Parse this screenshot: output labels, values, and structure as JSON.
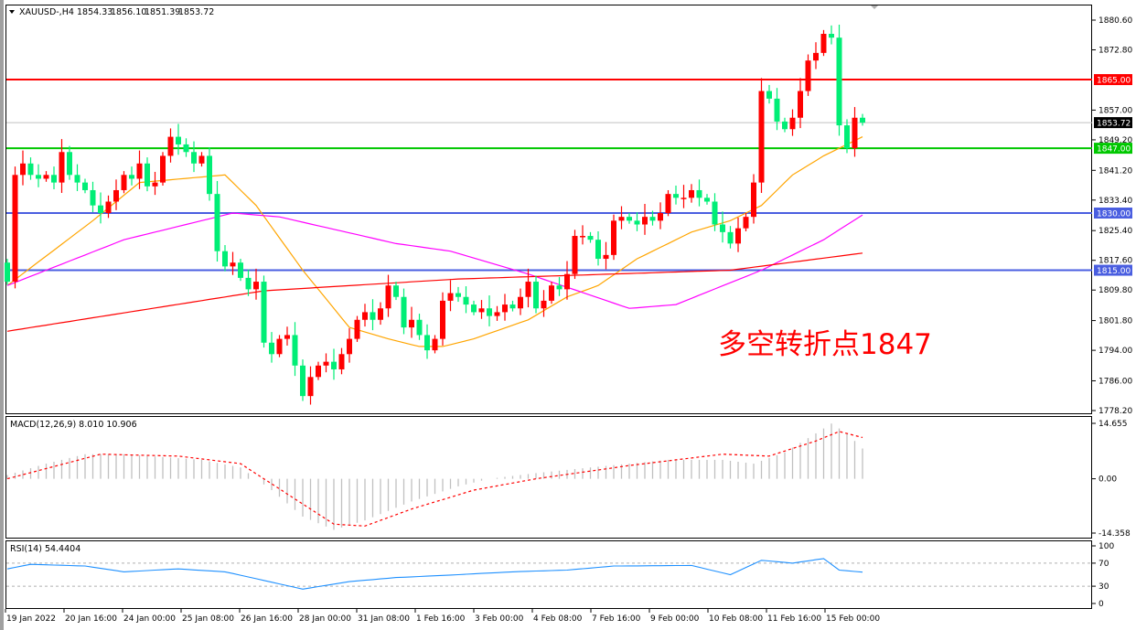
{
  "chart_data": {
    "type": "candlestick",
    "symbol_header": "XAUUSD-,H4",
    "ohlc_header": [
      "1854.33",
      "1856.10",
      "1851.39",
      "1853.72"
    ],
    "up_color": "#ff0000",
    "down_color": "#00ee76",
    "closes": [
      1812,
      1840,
      1843,
      1840,
      1839,
      1840,
      1838,
      1846,
      1840,
      1838,
      1836,
      1832,
      1830,
      1833,
      1836,
      1840,
      1839,
      1843,
      1837,
      1838,
      1845,
      1850,
      1848,
      1846,
      1843,
      1845,
      1835,
      1820,
      1816,
      1817,
      1813,
      1810,
      1812,
      1796,
      1793,
      1797,
      1798,
      1790,
      1782,
      1787,
      1790,
      1791,
      1789,
      1793,
      1797,
      1802,
      1804,
      1802,
      1805,
      1811,
      1808,
      1800,
      1802,
      1798,
      1794,
      1797,
      1807,
      1809,
      1808,
      1806,
      1804,
      1805,
      1803,
      1804,
      1806,
      1805,
      1808,
      1812,
      1805,
      1807,
      1811,
      1810,
      1814,
      1824,
      1824,
      1823,
      1818,
      1819,
      1828,
      1829,
      1828,
      1827,
      1829,
      1828,
      1830,
      1835,
      1834,
      1834,
      1836,
      1834,
      1833,
      1827,
      1825,
      1822,
      1826,
      1829,
      1838,
      1862,
      1860,
      1854,
      1852,
      1855,
      1862,
      1870,
      1872,
      1877,
      1876,
      1853,
      1847,
      1855,
      1853.72
    ],
    "first_open": 1817,
    "moving_averages": [
      {
        "color": "#ffa500",
        "points": [
          [
            0,
            1811
          ],
          [
            11,
            1828
          ],
          [
            17,
            1838
          ],
          [
            28,
            1840
          ],
          [
            32,
            1832
          ],
          [
            38,
            1815
          ],
          [
            44,
            1800
          ],
          [
            49,
            1797
          ],
          [
            53,
            1795
          ],
          [
            56,
            1795
          ],
          [
            60,
            1797
          ],
          [
            67,
            1802
          ],
          [
            72,
            1808
          ],
          [
            76,
            1811
          ],
          [
            81,
            1818
          ],
          [
            88,
            1825
          ],
          [
            93,
            1828
          ],
          [
            97,
            1832
          ],
          [
            101,
            1840
          ],
          [
            105,
            1845
          ],
          [
            110,
            1850
          ]
        ]
      },
      {
        "color": "#ff00ff",
        "points": [
          [
            0,
            1811
          ],
          [
            15,
            1823
          ],
          [
            29,
            1830
          ],
          [
            35,
            1829
          ],
          [
            50,
            1822
          ],
          [
            57,
            1820
          ],
          [
            67,
            1814
          ],
          [
            80,
            1805
          ],
          [
            86,
            1806
          ],
          [
            97,
            1815
          ],
          [
            105,
            1823
          ],
          [
            110,
            1829.5
          ]
        ]
      },
      {
        "color": "#ff0000",
        "points": [
          [
            0,
            1799
          ],
          [
            33,
            1809.6
          ],
          [
            58,
            1812.7
          ],
          [
            93,
            1815
          ],
          [
            110,
            1819.5
          ]
        ]
      }
    ],
    "horizontal_levels": [
      {
        "price": 1865.0,
        "label": "1865.00",
        "color": "#ff0000"
      },
      {
        "price": 1847.0,
        "label": "1847.00",
        "color": "#00c800"
      },
      {
        "price": 1830.0,
        "label": "1830.00",
        "color": "#4a5ee0"
      },
      {
        "price": 1815.0,
        "label": "1815.00",
        "color": "#4a5ee0"
      }
    ],
    "current_price": {
      "price": 1853.72,
      "label": "1853.72"
    },
    "price_axis": {
      "ylim": [
        1778.2,
        1880.6
      ],
      "ticks": [
        "1880.60",
        "1872.80",
        "1857.00",
        "1849.20",
        "1841.20",
        "1833.40",
        "1825.40",
        "1817.60",
        "1809.80",
        "1801.80",
        "1794.00",
        "1786.00",
        "1778.20"
      ]
    },
    "time_axis": [
      "19 Jan 2022",
      "20 Jan 16:00",
      "24 Jan 00:00",
      "25 Jan 08:00",
      "26 Jan 16:00",
      "28 Jan 00:00",
      "31 Jan 08:00",
      "1 Feb 16:00",
      "3 Feb 00:00",
      "4 Feb 08:00",
      "7 Feb 16:00",
      "9 Feb 00:00",
      "10 Feb 08:00",
      "11 Feb 16:00",
      "15 Feb 00:00"
    ],
    "annotation": "多空转折点1847",
    "macd": {
      "label": "MACD(12,26,9) 8.010 10.906",
      "ylim": [
        -14.358,
        14.655
      ],
      "ticks": [
        "14.655",
        "0.00",
        "-14.358"
      ],
      "histogram_color": "#c0c0c0",
      "signal_color": "#ff0000",
      "main_points": [
        [
          0,
          1
        ],
        [
          5,
          4
        ],
        [
          10,
          6.5
        ],
        [
          15,
          6.5
        ],
        [
          25,
          5
        ],
        [
          30,
          3
        ],
        [
          34,
          -3
        ],
        [
          38,
          -10
        ],
        [
          42,
          -13.5
        ],
        [
          46,
          -11
        ],
        [
          52,
          -6
        ],
        [
          58,
          -2
        ],
        [
          62,
          0
        ],
        [
          68,
          1.5
        ],
        [
          75,
          3
        ],
        [
          85,
          5
        ],
        [
          92,
          5
        ],
        [
          96,
          4
        ],
        [
          100,
          7
        ],
        [
          104,
          12
        ],
        [
          106,
          14.6
        ],
        [
          108,
          12
        ],
        [
          110,
          8.01
        ]
      ],
      "signal_points": [
        [
          0,
          0
        ],
        [
          12,
          6.5
        ],
        [
          22,
          6
        ],
        [
          30,
          4
        ],
        [
          36,
          -4
        ],
        [
          42,
          -12
        ],
        [
          46,
          -12.5
        ],
        [
          52,
          -8
        ],
        [
          60,
          -3
        ],
        [
          68,
          0
        ],
        [
          80,
          3.5
        ],
        [
          92,
          6.5
        ],
        [
          98,
          6
        ],
        [
          104,
          10
        ],
        [
          107,
          12.5
        ],
        [
          110,
          10.906
        ]
      ]
    },
    "rsi": {
      "label": "RSI(14) 54.4404",
      "ylim": [
        0,
        100
      ],
      "ticks": [
        "100",
        "70",
        "30",
        "0"
      ],
      "levels": [
        70,
        30
      ],
      "color": "#1e90ff",
      "points": [
        [
          0,
          60
        ],
        [
          3,
          68
        ],
        [
          10,
          65
        ],
        [
          15,
          55
        ],
        [
          22,
          60
        ],
        [
          28,
          55
        ],
        [
          33,
          40
        ],
        [
          38,
          25
        ],
        [
          44,
          38
        ],
        [
          50,
          45
        ],
        [
          58,
          50
        ],
        [
          65,
          55
        ],
        [
          72,
          58
        ],
        [
          78,
          65
        ],
        [
          88,
          66
        ],
        [
          93,
          50
        ],
        [
          97,
          75
        ],
        [
          101,
          70
        ],
        [
          105,
          78
        ],
        [
          107,
          58
        ],
        [
          110,
          54.4404
        ]
      ]
    }
  }
}
